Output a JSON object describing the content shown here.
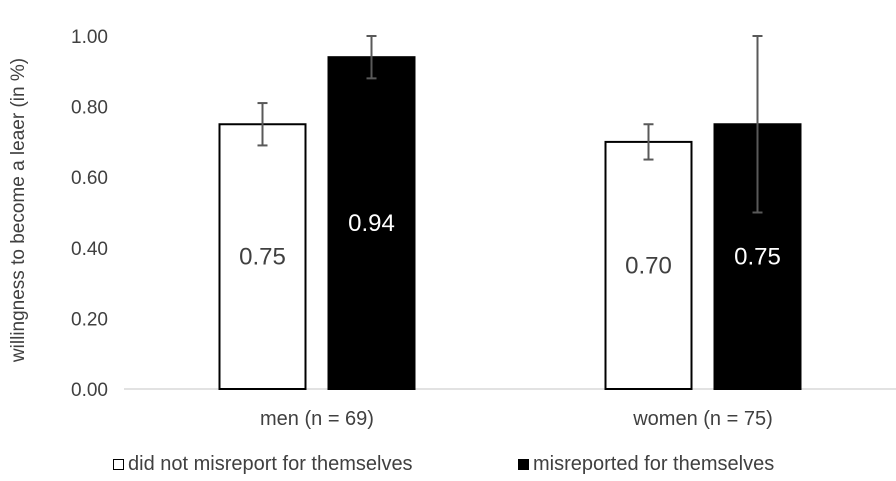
{
  "chart_data": {
    "type": "bar",
    "ylabel": "willingness to become a leaer (in %)",
    "categories": [
      "men (n = 69)",
      "women (n = 75)"
    ],
    "ylim": [
      0,
      1
    ],
    "yticks": [
      "0.00",
      "0.20",
      "0.40",
      "0.60",
      "0.80",
      "1.00"
    ],
    "series": [
      {
        "name": "did not misreport for themselves",
        "values": [
          0.75,
          0.7
        ],
        "labels": [
          "0.75",
          "0.70"
        ],
        "error_low": [
          0.69,
          0.65
        ],
        "error_high": [
          0.81,
          0.75
        ],
        "fill": "#ffffff",
        "label_color": "#404040"
      },
      {
        "name": "misreported for themselves",
        "values": [
          0.94,
          0.75
        ],
        "labels": [
          "0.94",
          "0.75"
        ],
        "error_low": [
          0.88,
          0.5
        ],
        "error_high": [
          1.0,
          1.0
        ],
        "fill": "#000000",
        "label_color": "#ffffff"
      }
    ],
    "grid": false,
    "legend_position": "bottom"
  }
}
